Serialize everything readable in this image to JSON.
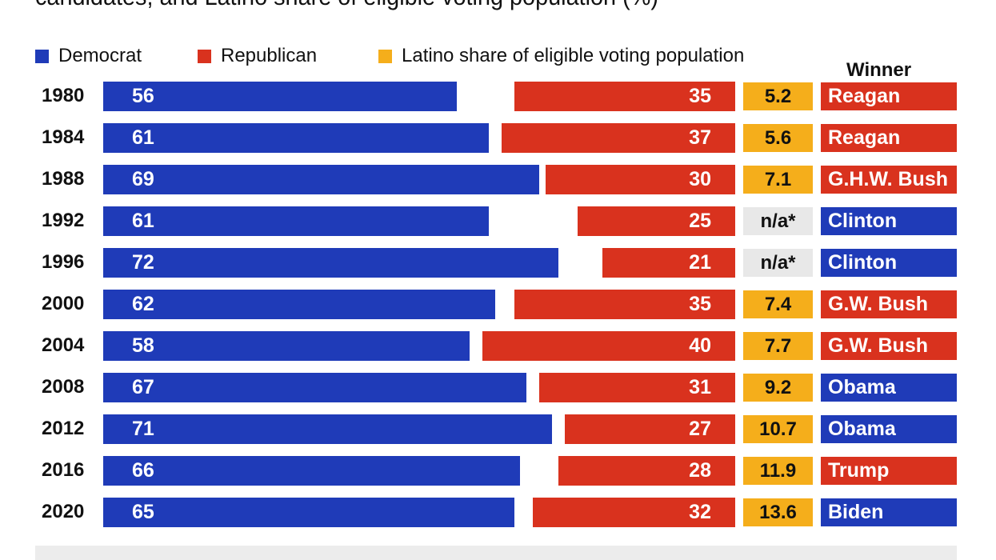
{
  "chart_data": {
    "type": "bar",
    "title": "candidates, and Latino share of eligible voting population (%)",
    "legend": [
      "Democrat",
      "Republican",
      "Latino share of eligible voting population"
    ],
    "legend_placement": "top",
    "winner_header": "Winner",
    "colors": {
      "Democrat": "#1f3bb8",
      "Republican": "#d9321e",
      "Latino": "#f5ae1b",
      "na": "#e8e8e8"
    },
    "categories": [
      "1980",
      "1984",
      "1988",
      "1992",
      "1996",
      "2000",
      "2004",
      "2008",
      "2012",
      "2016",
      "2020"
    ],
    "series": [
      {
        "name": "Democrat",
        "values": [
          56,
          61,
          69,
          61,
          72,
          62,
          58,
          67,
          71,
          66,
          65
        ]
      },
      {
        "name": "Republican",
        "values": [
          35,
          37,
          30,
          25,
          21,
          35,
          40,
          31,
          27,
          28,
          32
        ]
      },
      {
        "name": "Latino share of eligible voting population",
        "values": [
          "5.2",
          "5.6",
          "7.1",
          "n/a*",
          "n/a*",
          "7.4",
          "7.7",
          "9.2",
          "10.7",
          "11.9",
          "13.6"
        ]
      }
    ],
    "winners": [
      {
        "name": "Reagan",
        "party": "Republican"
      },
      {
        "name": "Reagan",
        "party": "Republican"
      },
      {
        "name": "G.H.W. Bush",
        "party": "Republican"
      },
      {
        "name": "Clinton",
        "party": "Democrat"
      },
      {
        "name": "Clinton",
        "party": "Democrat"
      },
      {
        "name": "G.W. Bush",
        "party": "Republican"
      },
      {
        "name": "G.W. Bush",
        "party": "Republican"
      },
      {
        "name": "Obama",
        "party": "Democrat"
      },
      {
        "name": "Obama",
        "party": "Democrat"
      },
      {
        "name": "Trump",
        "party": "Republican"
      },
      {
        "name": "Biden",
        "party": "Democrat"
      }
    ],
    "grid": false
  }
}
